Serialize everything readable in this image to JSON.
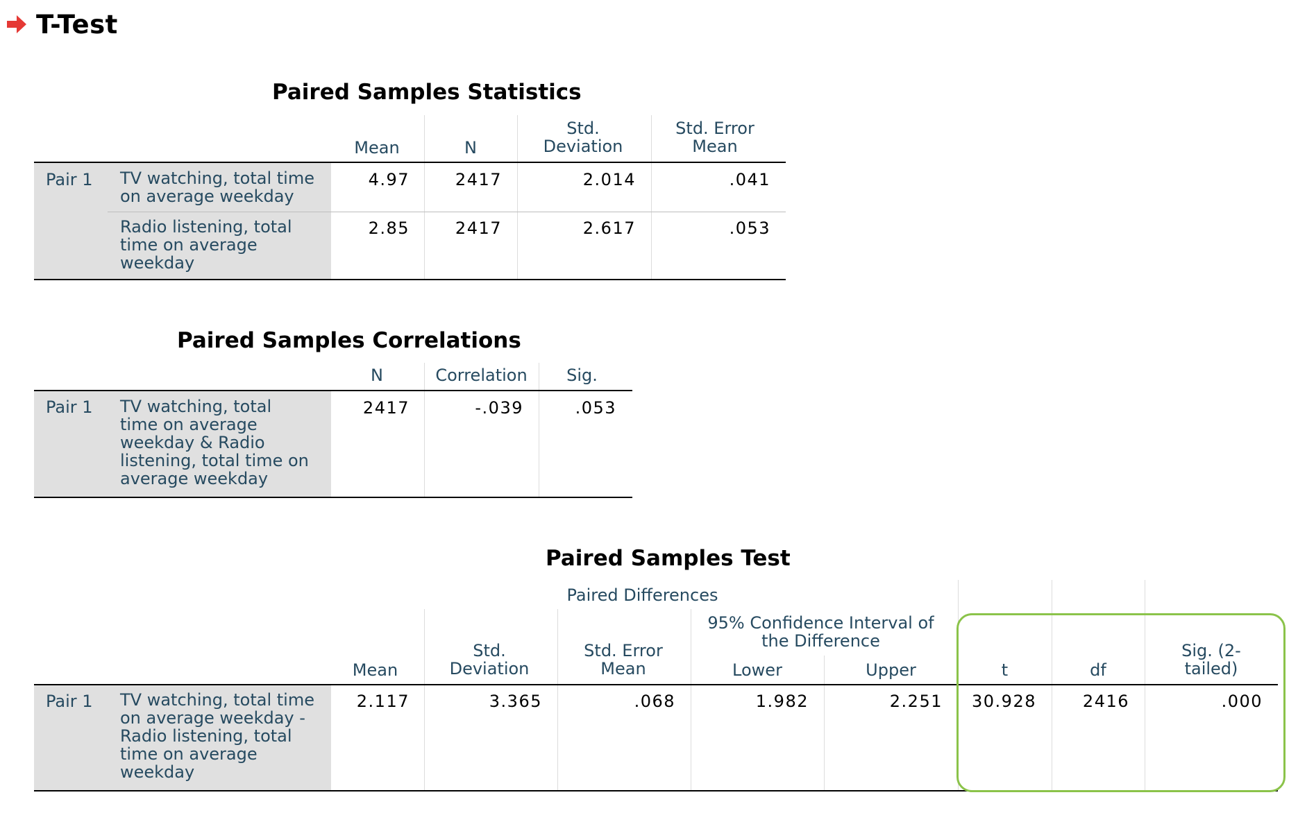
{
  "page": {
    "heading": "T-Test",
    "arrow_color": "#e53935",
    "highlight_color": "#8bc34a",
    "header_text_color": "#264a60"
  },
  "stats_table": {
    "title": "Paired Samples Statistics",
    "columns": [
      "Mean",
      "N",
      "Std. Deviation",
      "Std. Error Mean"
    ],
    "pair_label": "Pair 1",
    "rows": [
      {
        "variable": "TV watching, total time on average weekday",
        "mean": "4.97",
        "n": "2417",
        "std_dev": "2.014",
        "std_err": ".041"
      },
      {
        "variable": "Radio listening, total time on average weekday",
        "mean": "2.85",
        "n": "2417",
        "std_dev": "2.617",
        "std_err": ".053"
      }
    ]
  },
  "corr_table": {
    "title": "Paired Samples Correlations",
    "columns": [
      "N",
      "Correlation",
      "Sig."
    ],
    "pair_label": "Pair 1",
    "rows": [
      {
        "variable": "TV watching, total time on average weekday & Radio listening, total time on average weekday",
        "n": "2417",
        "correlation": "-.039",
        "sig": ".053"
      }
    ]
  },
  "test_table": {
    "title": "Paired Samples Test",
    "group_header": "Paired Differences",
    "ci_header": "95% Confidence Interval of the Difference",
    "columns": [
      "Mean",
      "Std. Deviation",
      "Std. Error Mean",
      "Lower",
      "Upper",
      "t",
      "df",
      "Sig. (2-tailed)"
    ],
    "pair_label": "Pair 1",
    "rows": [
      {
        "variable": "TV watching, total time on average weekday - Radio listening, total time on average weekday",
        "mean": "2.117",
        "std_dev": "3.365",
        "std_err": ".068",
        "lower": "1.982",
        "upper": "2.251",
        "t": "30.928",
        "df": "2416",
        "sig": ".000"
      }
    ]
  }
}
